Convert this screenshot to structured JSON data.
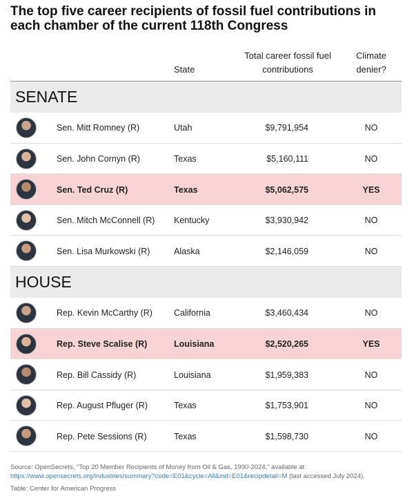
{
  "title": "The top five career recipients of fossil fuel contributions in each chamber of the current 118th Congress",
  "columns": {
    "state": "State",
    "total": "Total career fossil fuel contributions",
    "denier": "Climate denier?"
  },
  "highlight_color": "#f8d3d5",
  "sections": [
    {
      "name": "SENATE",
      "rows": [
        {
          "name": "Sen. Mitt Romney (R)",
          "state": "Utah",
          "total": "$9,791,954",
          "denier": "NO",
          "highlighted": false
        },
        {
          "name": "Sen. John Cornyn (R)",
          "state": "Texas",
          "total": "$5,160,111",
          "denier": "NO",
          "highlighted": false
        },
        {
          "name": "Sen. Ted Cruz (R)",
          "state": "Texas",
          "total": "$5,062,575",
          "denier": "YES",
          "highlighted": true
        },
        {
          "name": "Sen. Mitch McConnell (R)",
          "state": "Kentucky",
          "total": "$3,930,942",
          "denier": "NO",
          "highlighted": false
        },
        {
          "name": "Sen. Lisa Murkowski (R)",
          "state": "Alaska",
          "total": "$2,146,059",
          "denier": "NO",
          "highlighted": false
        }
      ]
    },
    {
      "name": "HOUSE",
      "rows": [
        {
          "name": "Rep. Kevin McCarthy (R)",
          "state": "California",
          "total": "$3,460,434",
          "denier": "NO",
          "highlighted": false
        },
        {
          "name": "Rep. Steve Scalise (R)",
          "state": "Louisiana",
          "total": "$2,520,265",
          "denier": "YES",
          "highlighted": true
        },
        {
          "name": "Rep. Bill Cassidy (R)",
          "state": "Louisiana",
          "total": "$1,959,383",
          "denier": "NO",
          "highlighted": false
        },
        {
          "name": "Rep. August Pfluger (R)",
          "state": "Texas",
          "total": "$1,753,901",
          "denier": "NO",
          "highlighted": false
        },
        {
          "name": "Rep. Pete Sessions (R)",
          "state": "Texas",
          "total": "$1,598,730",
          "denier": "NO",
          "highlighted": false
        }
      ]
    }
  ],
  "source": {
    "text": "Source: OpenSecrets, “Top 20 Member Recipients of Money from Oil & Gas, 1990-2024,” available at",
    "link": "https://www.opensecrets.org/industries/summary?code=E01&cycle=All&ind=E01&recipdetail=M",
    "accessed": "(last accessed July 2024).",
    "credit": "Table: Center for American Progress"
  }
}
